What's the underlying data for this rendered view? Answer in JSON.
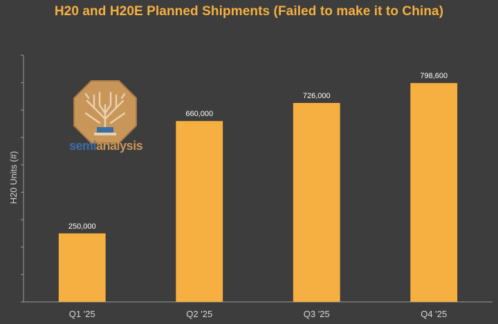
{
  "chart_data": {
    "type": "bar",
    "title": "H20 and H20E Planned Shipments (Failed to make it to China)",
    "xlabel": "",
    "ylabel": "H20 Units (#)",
    "categories": [
      "Q1 '25",
      "Q2 '25",
      "Q3 '25",
      "Q4 '25"
    ],
    "series": [
      {
        "values": [
          250000,
          660000,
          726000,
          798600
        ],
        "data_labels": [
          "250,000",
          "660,000",
          "726,000",
          "798,600"
        ]
      }
    ],
    "ylim": [
      0,
      900000
    ],
    "grid": false,
    "legend": "none",
    "colors": {
      "bar": "#f5b041",
      "background": "#3d3d3d",
      "text": "#ffffff",
      "title": "#f5b041",
      "axis": "#9a9a9a"
    }
  },
  "logo": {
    "icon": "semianalysis-tree-logo",
    "text_part1": "semi",
    "text_part2": "analysis"
  }
}
